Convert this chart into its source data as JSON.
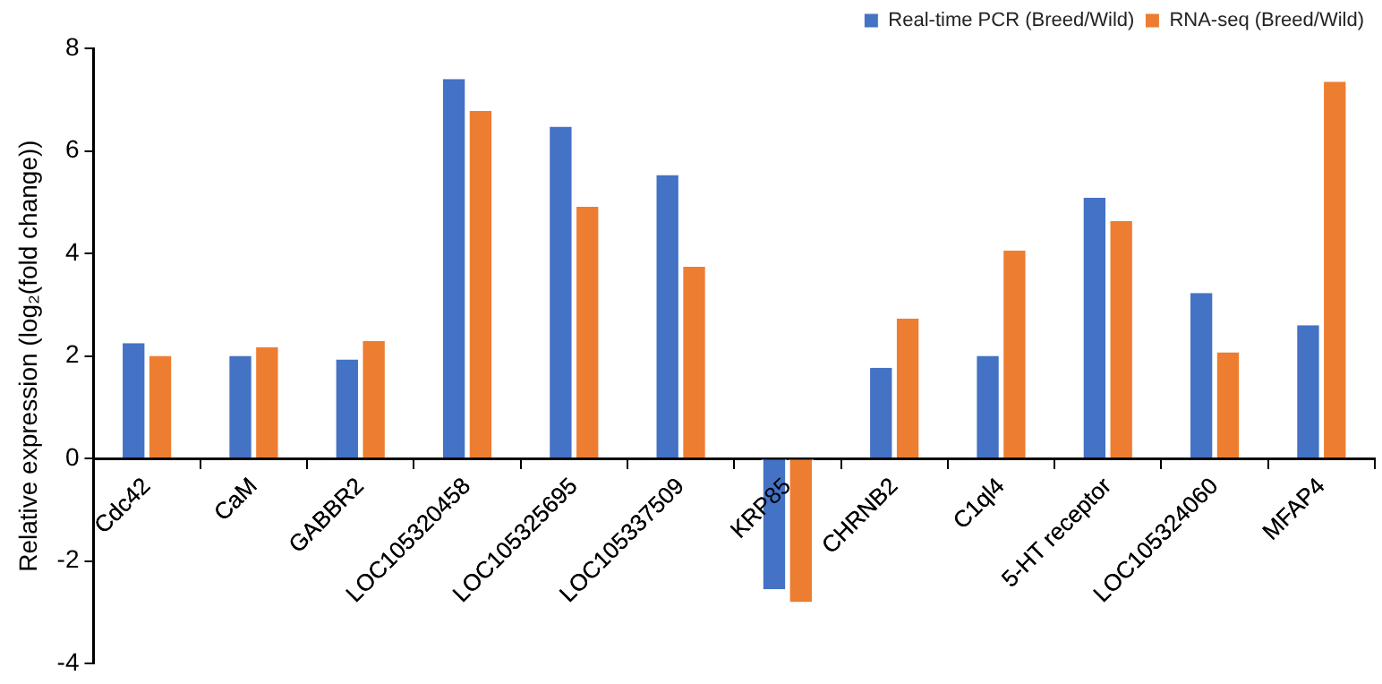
{
  "chart_data": {
    "type": "bar",
    "ylabel": "Relative expression (log₂(fold change))",
    "categories": [
      "Cdc42",
      "CaM",
      "GABBR2",
      "LOC105320458",
      "LOC105325695",
      "LOC105337509",
      "KRP85",
      "CHRNB2",
      "C1ql4",
      "5-HT receptor",
      "LOC105324060",
      "MFAP4"
    ],
    "series": [
      {
        "name": "Real-time PCR (Breed/Wild)",
        "color": "#4472c4",
        "values": [
          2.25,
          2.0,
          1.93,
          7.4,
          6.47,
          5.53,
          -2.55,
          1.77,
          2.0,
          5.09,
          3.23,
          2.6
        ]
      },
      {
        "name": "RNA-seq (Breed/Wild)",
        "color": "#ed7d31",
        "values": [
          2.0,
          2.17,
          2.29,
          6.78,
          4.91,
          3.74,
          -2.8,
          2.73,
          4.06,
          4.63,
          2.07,
          7.35
        ]
      }
    ],
    "ylim": [
      -4,
      8
    ],
    "yticks": [
      -4,
      -2,
      0,
      2,
      4,
      6,
      8
    ],
    "grid": false,
    "legend": "top right"
  }
}
